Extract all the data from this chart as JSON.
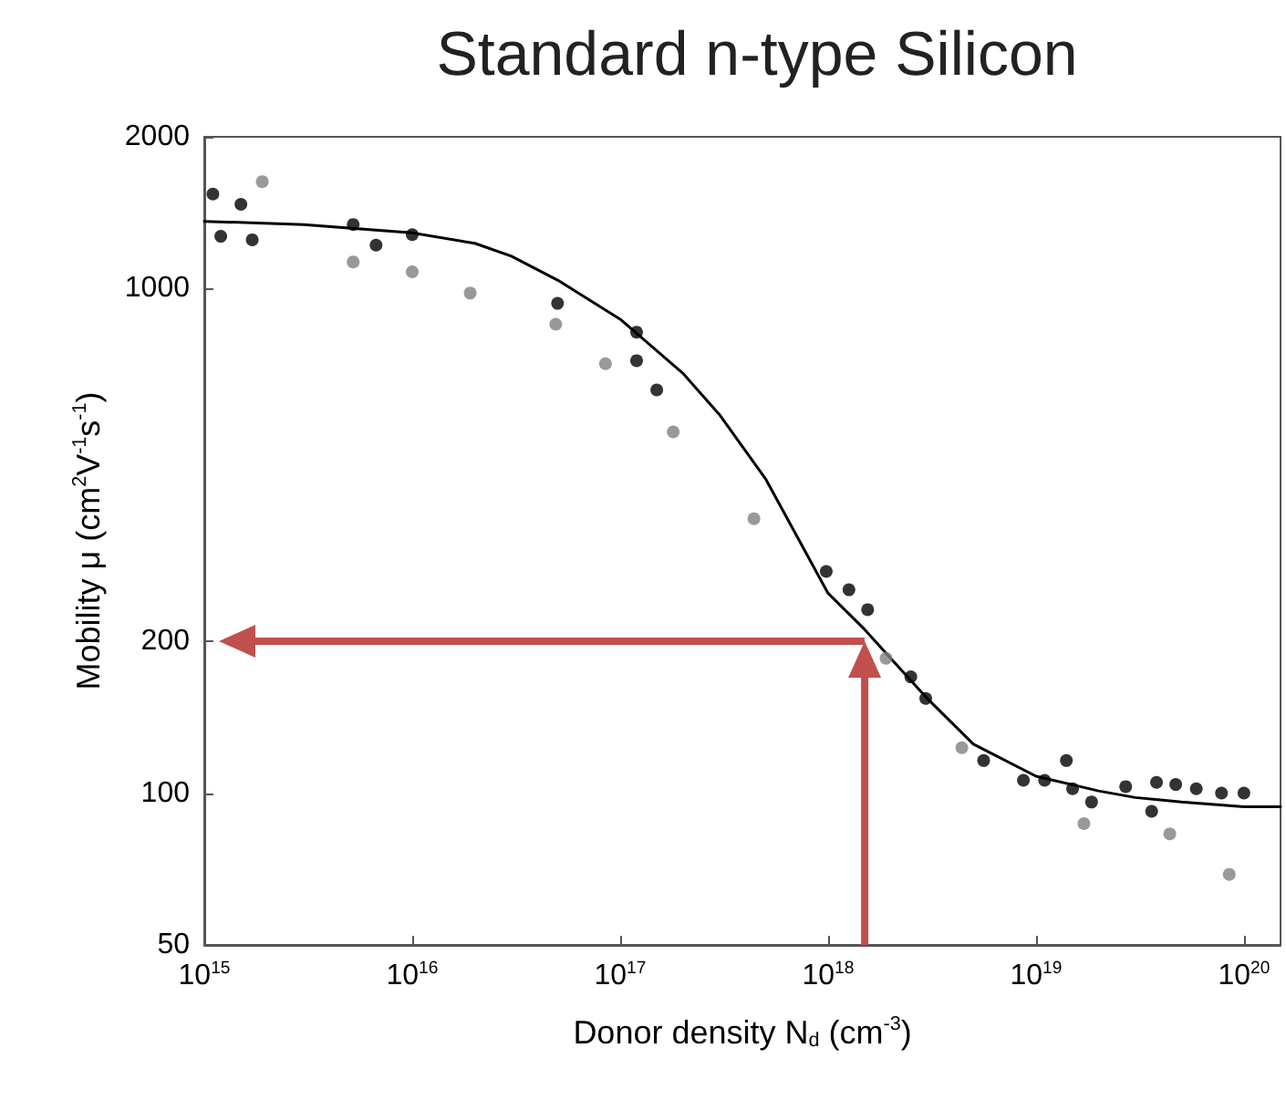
{
  "chart_data": {
    "type": "scatter",
    "title": "Standard n-type Silicon",
    "xlabel": "Donor density N$_{d}$ (cm$^{-3}$)",
    "ylabel": "Mobility μ (cm$^{2}$V$^{-1}$s$^{-1}$)",
    "log": "xy",
    "grid": false,
    "marker": "circle",
    "xlim": [
      1000000000000000.0,
      1.5e+20
    ],
    "ylim": [
      50,
      2000
    ],
    "xticks": [
      {
        "value": 1000000000000000.0,
        "label": "10$^{15}$"
      },
      {
        "value": 1e+16,
        "label": "10$^{16}$"
      },
      {
        "value": 1e+17,
        "label": "10$^{17}$"
      },
      {
        "value": 1e+18,
        "label": "10$^{18}$"
      },
      {
        "value": 1e+19,
        "label": "10$^{19}$"
      },
      {
        "value": 1e+20,
        "label": "10$^{20}$"
      }
    ],
    "yticks": [
      50,
      100,
      200,
      1000,
      2000
    ],
    "series": [
      {
        "color": "#000000",
        "x": [
          1100000000000000.0,
          1200000000000000.0,
          1500000000000000.0,
          1700000000000000.0,
          5200000000000000.0,
          6700000000000000.0,
          1e+16,
          5e+16,
          1.2e+17,
          1.2e+17,
          1.5e+17,
          9.8e+17,
          1.26e+18,
          1.55e+18,
          2.5e+18,
          2.95e+18,
          5.6e+18,
          8.7e+18,
          1.1e+19,
          1.4e+19,
          1.5e+19,
          1.85e+19,
          2.7e+19,
          3.6e+19,
          3.8e+19,
          4.7e+19,
          5.9e+19,
          7.8e+19,
          1e+20
        ],
        "values": [
          1540,
          1270,
          1470,
          1250,
          1340,
          1220,
          1280,
          935,
          820,
          720,
          630,
          275,
          253,
          231,
          170,
          154,
          116,
          106,
          106,
          116,
          102,
          96,
          103,
          92,
          105,
          104,
          102,
          100,
          100
        ]
      },
      {
        "color": "#808080",
        "x": [
          1900000000000000.0,
          5200000000000000.0,
          1e+16,
          1.9e+16,
          4.9e+16,
          8.5e+16,
          1.8e+17,
          4.4e+17,
          1.9e+18,
          4.4e+18,
          1.7e+19,
          4.4e+19,
          8.5e+19
        ],
        "values": [
          1630,
          1130,
          1080,
          980,
          850,
          710,
          520,
          350,
          185,
          123,
          87,
          83,
          69
        ]
      },
      {
        "type": "line",
        "color": "#000000",
        "marker": "none",
        "x": [
          1000000000000000.0,
          3000000000000000.0,
          1e+16,
          2e+16,
          3e+16,
          5e+16,
          1e+17,
          2e+17,
          3e+17,
          5e+17,
          1e+18,
          1.5e+18,
          2e+18,
          3e+18,
          5e+18,
          1e+19,
          2e+19,
          3e+19,
          5e+19,
          1e+20,
          1.5e+20
        ],
        "values": [
          1360,
          1340,
          1290,
          1230,
          1160,
          1040,
          870,
          680,
          563,
          420,
          249,
          211,
          185,
          154,
          125,
          108,
          101,
          98,
          96,
          94,
          94
        ]
      }
    ],
    "ref_lines": [
      {
        "axis": "x",
        "value": 1.5e+18,
        "color": "#c0504d"
      },
      {
        "axis": "y",
        "value": 200,
        "color": "#c0504d"
      }
    ]
  }
}
